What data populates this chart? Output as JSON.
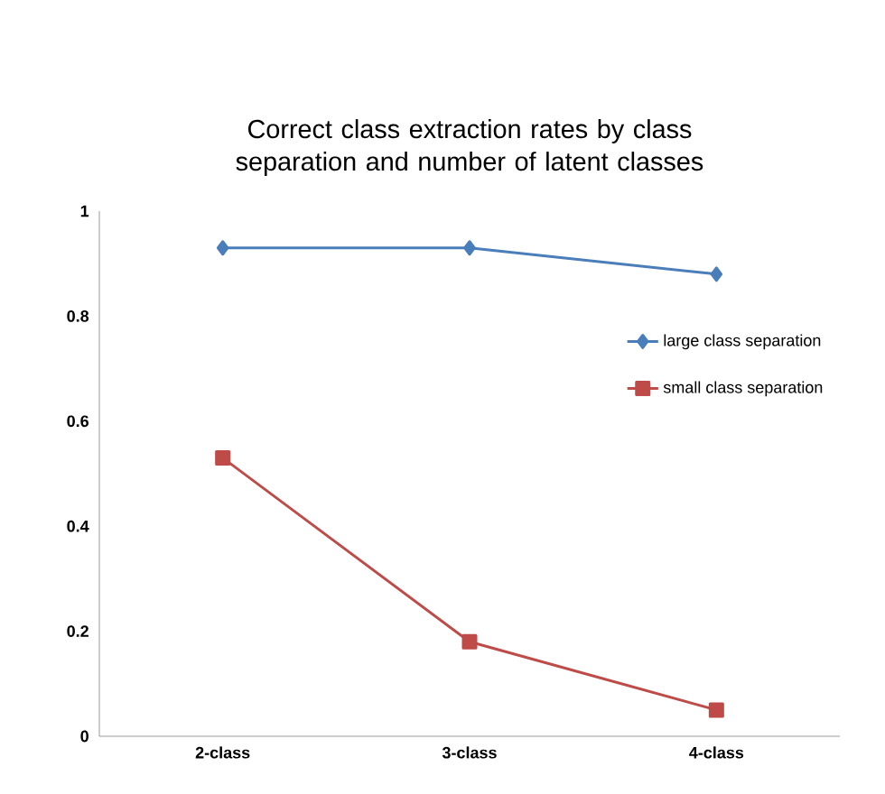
{
  "chart_data": {
    "type": "line",
    "title": "Correct class extraction rates by class separation and number of latent classes",
    "categories": [
      "2-class",
      "3-class",
      "4-class"
    ],
    "series": [
      {
        "name": "large class separation",
        "color": "#4a7ebb",
        "marker": "diamond",
        "values": [
          0.93,
          0.93,
          0.88
        ]
      },
      {
        "name": "small class separation",
        "color": "#be4b48",
        "marker": "square",
        "values": [
          0.53,
          0.18,
          0.05
        ]
      }
    ],
    "ylim": [
      0,
      1
    ],
    "yticks": [
      0,
      0.2,
      0.4,
      0.6,
      0.8,
      1
    ],
    "grid": false,
    "legend": "right"
  }
}
